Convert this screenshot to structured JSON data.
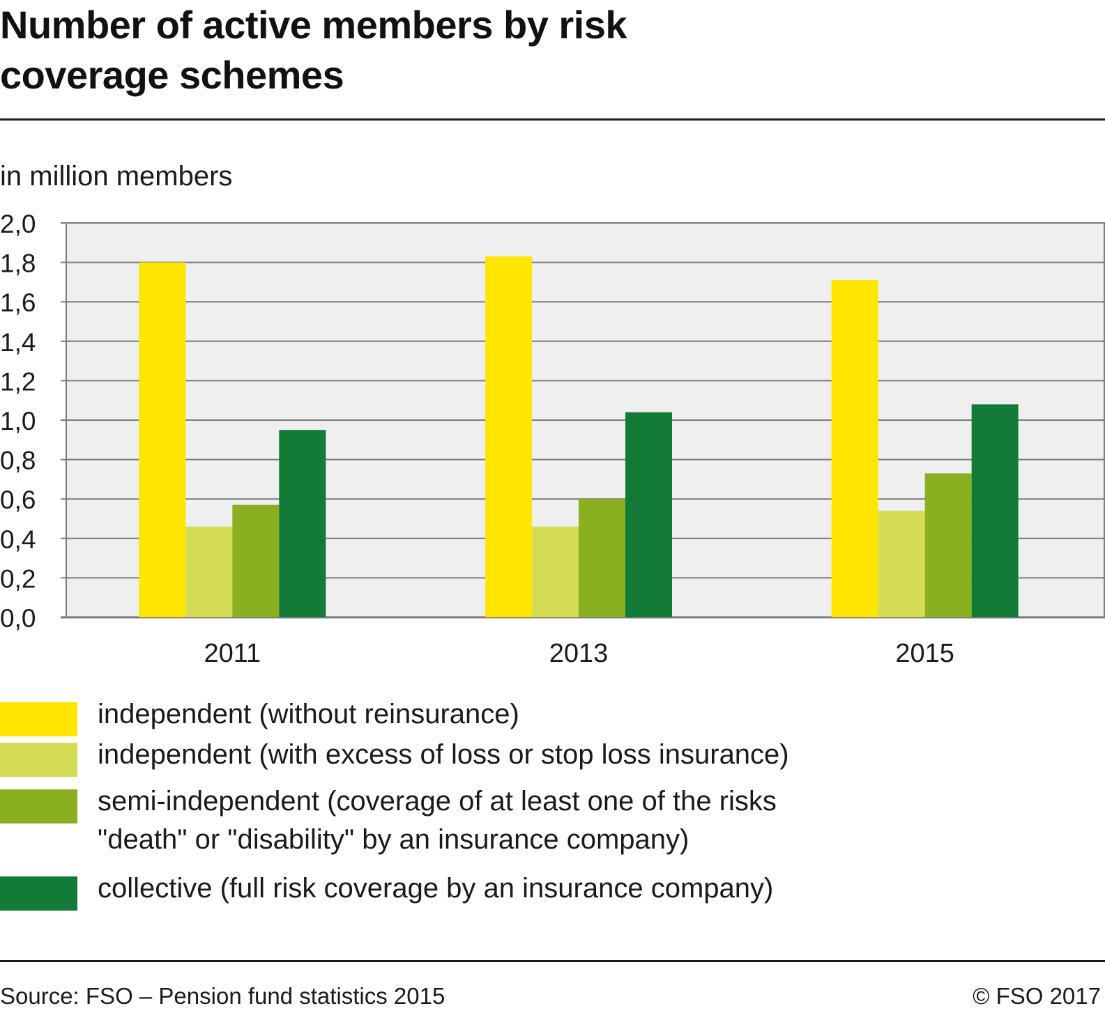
{
  "chart_data": {
    "type": "bar",
    "title": "Number of active members by risk coverage schemes",
    "ylabel": "in million members",
    "xlabel": "",
    "ylim": [
      0,
      2.0
    ],
    "yticks": [
      "0,0",
      "0,2",
      "0,4",
      "0,6",
      "0,8",
      "1,0",
      "1,2",
      "1,4",
      "1,6",
      "1,8",
      "2,0"
    ],
    "grid": true,
    "legend_position": "bottom",
    "categories": [
      "2011",
      "2013",
      "2015"
    ],
    "series": [
      {
        "name": "independent (without reinsurance)",
        "color": "#FFE600",
        "values": [
          1.8,
          1.83,
          1.71
        ]
      },
      {
        "name": "independent (with excess of loss or stop loss insurance)",
        "color": "#D4DC55",
        "values": [
          0.46,
          0.46,
          0.54
        ]
      },
      {
        "name": "semi-independent (coverage of at least one of the risks\n\"death\" or \"disability\" by an insurance company)",
        "color": "#8AB021",
        "values": [
          0.57,
          0.6,
          0.73
        ]
      },
      {
        "name": "collective (full risk coverage by an insurance company)",
        "color": "#137A38",
        "values": [
          0.95,
          1.04,
          1.08
        ]
      }
    ]
  },
  "colors": {
    "plot_background": "#EFEFEF",
    "gridline": "#7A7A7A",
    "axis": "#7A7A7A"
  },
  "footer": {
    "source": "Source: FSO – Pension fund statistics 2015",
    "copyright": "© FSO 2017"
  }
}
